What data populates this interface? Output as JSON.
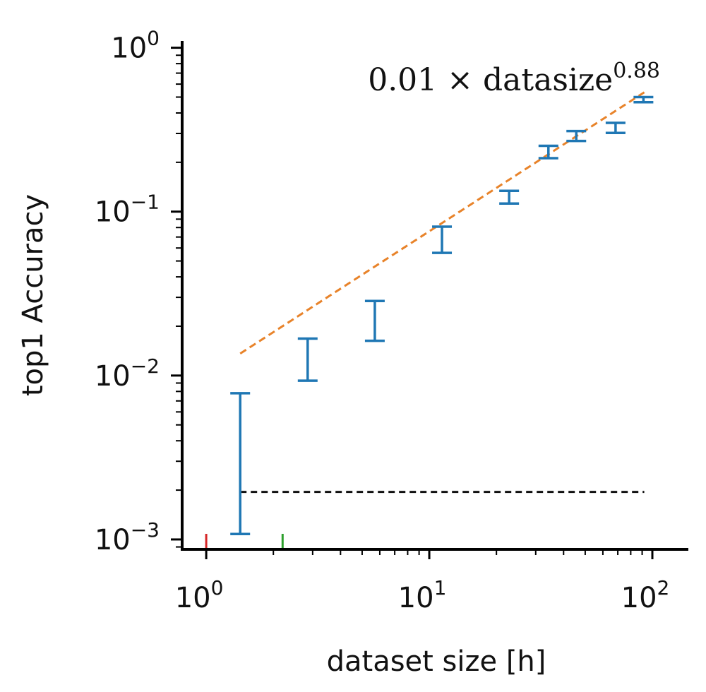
{
  "chart_data": {
    "type": "scatter",
    "title": "",
    "xlabel": "dataset size [h]",
    "ylabel": "top1 Accuracy",
    "x_scale": "log",
    "y_scale": "log",
    "xlim": [
      0.78,
      145
    ],
    "ylim": [
      0.00087,
      1.1
    ],
    "x_ticks": [
      {
        "value": 1,
        "label": "10",
        "exp": "0"
      },
      {
        "value": 10,
        "label": "10",
        "exp": "1"
      },
      {
        "value": 100,
        "label": "10",
        "exp": "2"
      }
    ],
    "y_ticks": [
      {
        "value": 0.001,
        "label": "10",
        "exp": "−3"
      },
      {
        "value": 0.01,
        "label": "10",
        "exp": "−2"
      },
      {
        "value": 0.1,
        "label": "10",
        "exp": "−1"
      },
      {
        "value": 1,
        "label": "10",
        "exp": "0"
      }
    ],
    "grid": false,
    "colors": {
      "errorbars": "#1f77b4",
      "fit": "#e8832a",
      "baseline": "#111111",
      "marker_red": "#d62728",
      "marker_green": "#2ca02c"
    },
    "errorbars": [
      {
        "x": 1.42,
        "low": 0.00108,
        "high": 0.0078
      },
      {
        "x": 2.85,
        "low": 0.0093,
        "high": 0.0168
      },
      {
        "x": 5.7,
        "low": 0.0163,
        "high": 0.0285
      },
      {
        "x": 11.4,
        "low": 0.056,
        "high": 0.081
      },
      {
        "x": 22.8,
        "low": 0.112,
        "high": 0.134
      },
      {
        "x": 34.2,
        "low": 0.212,
        "high": 0.252
      },
      {
        "x": 45.6,
        "low": 0.27,
        "high": 0.31
      },
      {
        "x": 68.4,
        "low": 0.302,
        "high": 0.348
      },
      {
        "x": 91.2,
        "low": 0.465,
        "high": 0.5
      }
    ],
    "fit_line": {
      "label_text": "0.01 × datasize",
      "label_exp": "0.88",
      "x_range": [
        1.42,
        92
      ]
    },
    "baseline": {
      "y": 0.00195,
      "x_range": [
        1.42,
        92
      ]
    },
    "axis_markers": [
      {
        "x": 1.0,
        "color": "red"
      },
      {
        "x": 2.2,
        "color": "green"
      }
    ]
  }
}
